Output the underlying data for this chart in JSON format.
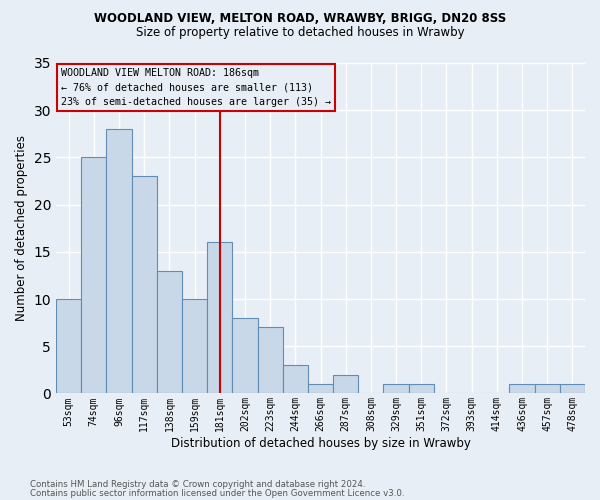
{
  "title1": "WOODLAND VIEW, MELTON ROAD, WRAWBY, BRIGG, DN20 8SS",
  "title2": "Size of property relative to detached houses in Wrawby",
  "xlabel": "Distribution of detached houses by size in Wrawby",
  "ylabel": "Number of detached properties",
  "categories": [
    "53sqm",
    "74sqm",
    "96sqm",
    "117sqm",
    "138sqm",
    "159sqm",
    "181sqm",
    "202sqm",
    "223sqm",
    "244sqm",
    "266sqm",
    "287sqm",
    "308sqm",
    "329sqm",
    "351sqm",
    "372sqm",
    "393sqm",
    "414sqm",
    "436sqm",
    "457sqm",
    "478sqm"
  ],
  "values": [
    10,
    25,
    28,
    23,
    13,
    10,
    16,
    8,
    7,
    3,
    1,
    2,
    0,
    1,
    1,
    0,
    0,
    0,
    1,
    1,
    1
  ],
  "bar_color": "#c8d8e8",
  "bar_edge_color": "#5f8db5",
  "bg_color": "#e8eef5",
  "grid_color": "#ffffff",
  "vline_x_index": 6,
  "vline_color": "#cc0000",
  "annotation_lines": [
    "WOODLAND VIEW MELTON ROAD: 186sqm",
    "← 76% of detached houses are smaller (113)",
    "23% of semi-detached houses are larger (35) →"
  ],
  "annotation_box_edge": "#cc0000",
  "footnote1": "Contains HM Land Registry data © Crown copyright and database right 2024.",
  "footnote2": "Contains public sector information licensed under the Open Government Licence v3.0.",
  "ylim": [
    0,
    35
  ],
  "yticks": [
    0,
    5,
    10,
    15,
    20,
    25,
    30,
    35
  ]
}
